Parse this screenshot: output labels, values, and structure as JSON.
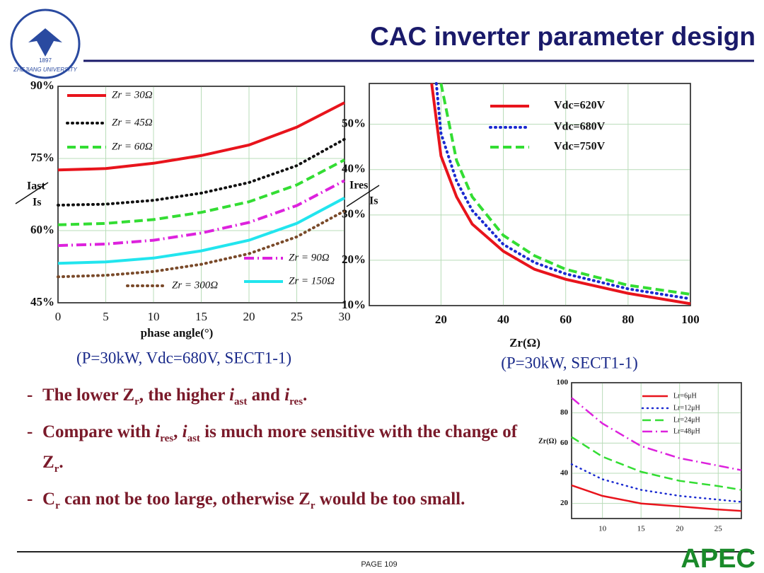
{
  "header": {
    "title": "CAC inverter parameter design",
    "logo_text": "ZHEJIANG UNIVERSITY",
    "logo_year": "1897"
  },
  "chart_data": [
    {
      "type": "line",
      "ylabel": [
        "Iast",
        "Is"
      ],
      "xlabel": "phase angle(°)",
      "subtitle": "(P=30kW, Vdc=680V, SECT1-1)",
      "x": [
        0,
        5,
        10,
        15,
        20,
        25,
        30
      ],
      "xlim": [
        0,
        30
      ],
      "xticks": [
        0,
        5,
        10,
        15,
        20,
        25,
        30
      ],
      "ylim": [
        45,
        90
      ],
      "yticks": [
        {
          "value": 45,
          "label": "45%"
        },
        {
          "value": 60,
          "label": "60%"
        },
        {
          "value": 75,
          "label": "75%"
        },
        {
          "value": 90,
          "label": "90%"
        }
      ],
      "grid": true,
      "series": [
        {
          "name": "Zr = 30Ω",
          "color": "#e8141c",
          "style": "solid",
          "values": [
            72.6,
            72.9,
            74,
            75.6,
            77.8,
            81.5,
            86.6
          ]
        },
        {
          "name": "Zr = 45Ω",
          "color": "#111111",
          "style": "dotted",
          "values": [
            65.3,
            65.5,
            66.3,
            67.8,
            70,
            73.5,
            79
          ]
        },
        {
          "name": "Zr = 60Ω",
          "color": "#33dd33",
          "style": "dashed",
          "values": [
            61.2,
            61.5,
            62.3,
            63.8,
            66,
            69.5,
            74.7
          ]
        },
        {
          "name": "Zr = 90Ω",
          "color": "#dd22dd",
          "style": "dashdot",
          "values": [
            56.9,
            57.2,
            58,
            59.5,
            61.7,
            65.2,
            70.4
          ]
        },
        {
          "name": "Zr = 150Ω",
          "color": "#22e5ee",
          "style": "solid",
          "values": [
            53.2,
            53.5,
            54.3,
            55.8,
            58,
            61.5,
            66.8
          ]
        },
        {
          "name": "Zr = 300Ω",
          "color": "#7a4a2a",
          "style": "dotted",
          "values": [
            50.4,
            50.7,
            51.5,
            53,
            55.2,
            58.7,
            64.1
          ]
        }
      ]
    },
    {
      "type": "line",
      "ylabel": [
        "Ires",
        "Is"
      ],
      "xlabel": "Zr(Ω)",
      "subtitle": "(P=30kW, SECT1-1)",
      "xlim": [
        -3,
        100
      ],
      "xticks": [
        20,
        40,
        60,
        80,
        100
      ],
      "ylim": [
        10,
        59
      ],
      "yticks": [
        {
          "value": 10,
          "label": "10%"
        },
        {
          "value": 20,
          "label": "20%"
        },
        {
          "value": 30,
          "label": "30%"
        },
        {
          "value": 40,
          "label": "40%"
        },
        {
          "value": 50,
          "label": "50%"
        }
      ],
      "grid": true,
      "series": [
        {
          "name": "Vdc=620V",
          "color": "#e8141c",
          "style": "solid",
          "x": [
            17,
            20,
            25,
            30,
            40,
            50,
            60,
            80,
            100
          ],
          "values": [
            59,
            43,
            34,
            28,
            22,
            18,
            15.8,
            12.7,
            10.4
          ]
        },
        {
          "name": "Vdc=680V",
          "color": "#1a2ad0",
          "style": "dotted",
          "x": [
            18.5,
            20,
            25,
            30,
            40,
            50,
            60,
            80,
            100
          ],
          "values": [
            59,
            48,
            37.5,
            31,
            23.5,
            19.5,
            17,
            13.7,
            11.5
          ]
        },
        {
          "name": "Vdc=750V",
          "color": "#33dd33",
          "style": "dashed",
          "x": [
            20,
            25,
            30,
            40,
            50,
            60,
            80,
            100
          ],
          "values": [
            59,
            42,
            34,
            25.5,
            21,
            18,
            14.5,
            12.5
          ]
        }
      ]
    },
    {
      "type": "line",
      "ylabel": [
        "Zr(Ω)"
      ],
      "x": [
        6,
        10,
        15,
        20,
        25,
        28
      ],
      "xlim": [
        6,
        28
      ],
      "xticks": [
        10,
        15,
        20,
        25
      ],
      "ylim": [
        10,
        100
      ],
      "yticks": [
        20,
        40,
        60,
        80,
        100
      ],
      "grid": true,
      "series": [
        {
          "name": "Lr=6μH",
          "color": "#e8141c",
          "style": "solid",
          "values": [
            32,
            25,
            20,
            18,
            16,
            15
          ]
        },
        {
          "name": "Lr=12μH",
          "color": "#1a2ad0",
          "style": "dotted",
          "values": [
            46,
            36,
            29,
            25,
            22.5,
            21
          ]
        },
        {
          "name": "Lr=24μH",
          "color": "#33dd33",
          "style": "dashed",
          "values": [
            64,
            51,
            41,
            35,
            31.5,
            29
          ]
        },
        {
          "name": "Lr=48μH",
          "color": "#dd22dd",
          "style": "dashdot",
          "values": [
            90,
            73,
            58,
            50,
            45,
            42
          ]
        }
      ]
    }
  ],
  "bullets": [
    {
      "marker": "-",
      "segments": [
        {
          "text": "The lower Z"
        },
        {
          "text": "r",
          "style": "sub"
        },
        {
          "text": ", the higher "
        },
        {
          "text": "i",
          "style": "italic"
        },
        {
          "text": "ast",
          "style": "sub"
        },
        {
          "text": " and "
        },
        {
          "text": "i",
          "style": "italic"
        },
        {
          "text": "res",
          "style": "sub"
        },
        {
          "text": "."
        }
      ]
    },
    {
      "marker": "-",
      "segments": [
        {
          "text": "Compare with "
        },
        {
          "text": "i",
          "style": "italic"
        },
        {
          "text": "res",
          "style": "sub"
        },
        {
          "text": ", "
        },
        {
          "text": "i",
          "style": "italic"
        },
        {
          "text": "ast",
          "style": "sub"
        },
        {
          "text": " is much more sensitive with the change of Z"
        },
        {
          "text": "r",
          "style": "sub"
        },
        {
          "text": "."
        }
      ]
    },
    {
      "marker": "-",
      "segments": [
        {
          "text": "C"
        },
        {
          "text": "r",
          "style": "sub"
        },
        {
          "text": " can not be too large, otherwise Z"
        },
        {
          "text": "r",
          "style": "sub"
        },
        {
          "text": " would be too small."
        }
      ]
    }
  ],
  "footer": {
    "page": "PAGE 109",
    "logo": "APEC"
  }
}
